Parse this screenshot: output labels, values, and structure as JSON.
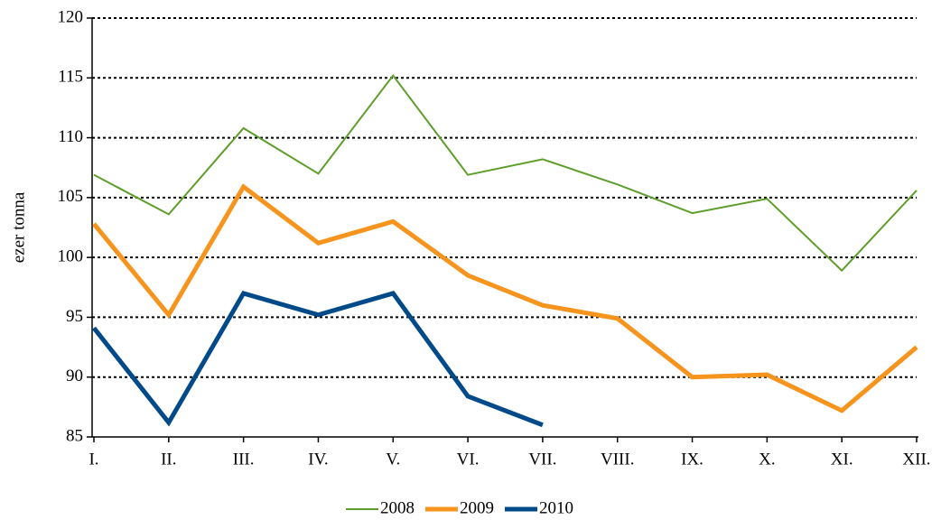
{
  "chart_data": {
    "type": "line",
    "y_label": "ezer tonna",
    "categories": [
      "I.",
      "II.",
      "III.",
      "IV.",
      "V.",
      "VI.",
      "VII.",
      "VIII.",
      "IX.",
      "X.",
      "XI.",
      "XII."
    ],
    "series": [
      {
        "name": "2008",
        "color": "#5e9e2a",
        "width": 2,
        "values": [
          106.9,
          103.6,
          110.8,
          107.0,
          115.2,
          106.9,
          108.2,
          106.1,
          103.7,
          104.9,
          98.9,
          105.6
        ]
      },
      {
        "name": "2009",
        "color": "#f7941d",
        "width": 5,
        "values": [
          102.8,
          95.2,
          105.9,
          101.2,
          103.0,
          98.5,
          96.0,
          94.9,
          90.0,
          90.2,
          87.2,
          92.5
        ]
      },
      {
        "name": "2010",
        "color": "#004a8a",
        "width": 5,
        "values": [
          94.1,
          86.2,
          97.0,
          95.2,
          97.0,
          88.4,
          86.0,
          null,
          null,
          null,
          null,
          null
        ]
      }
    ],
    "ylim": [
      85,
      120
    ],
    "yticks": [
      85,
      90,
      95,
      100,
      105,
      110,
      115,
      120
    ],
    "grid": true,
    "legend": "bottom"
  }
}
